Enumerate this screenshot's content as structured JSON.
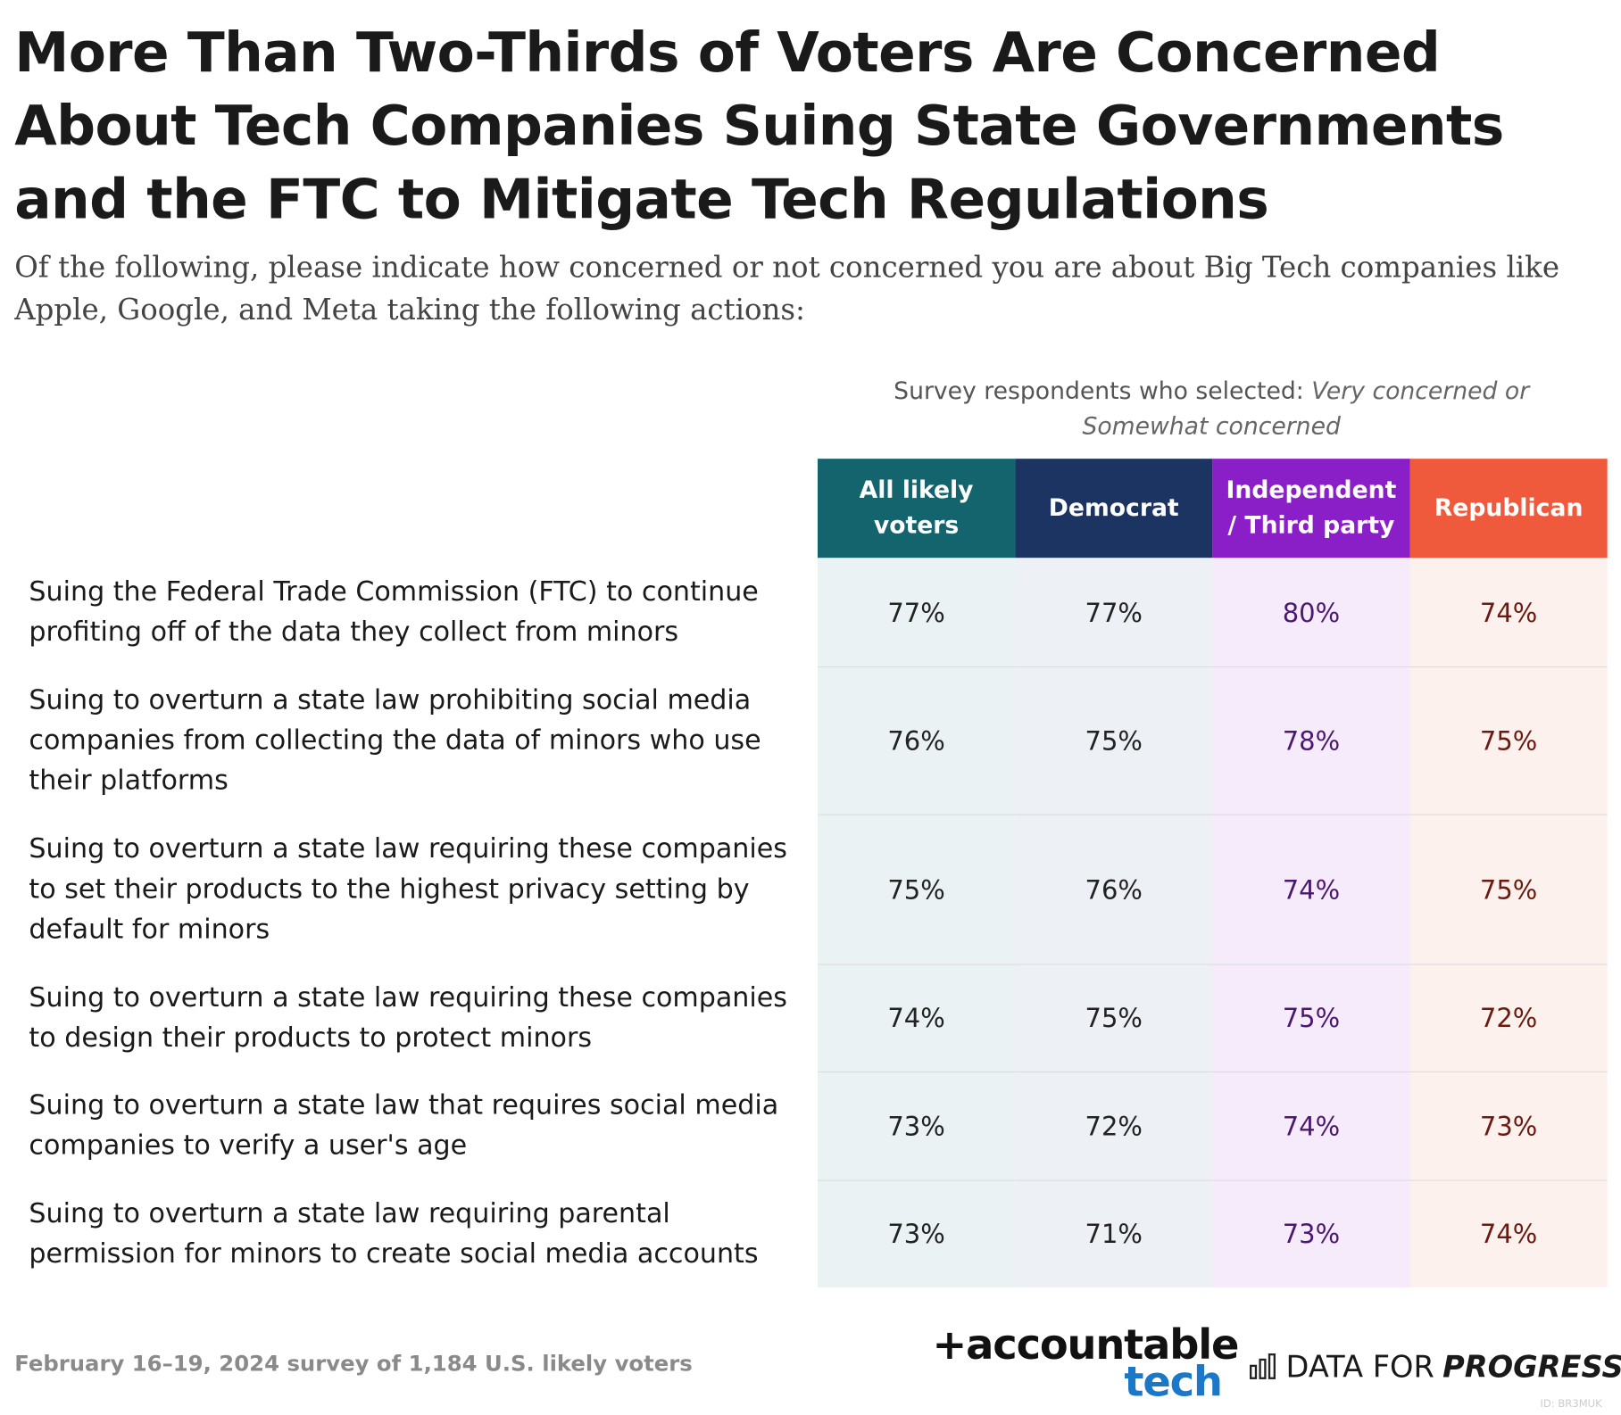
{
  "header": {
    "title": "More Than Two-Thirds of Voters Are Concerned About Tech Companies Suing State Governments and the FTC to Mitigate Tech Regulations",
    "subtitle": "Of the following, please indicate how concerned or not concerned you are about Big Tech companies like Apple, Google, and Meta taking the following actions:"
  },
  "table": {
    "note_prefix": "Survey respondents who selected:",
    "note_italic": "Very concerned or Somewhat concerned",
    "columns": [
      "All likely voters",
      "Democrat",
      "Independent / Third party",
      "Republican"
    ],
    "rows": [
      {
        "label": "Suing the Federal Trade Commission (FTC) to continue profiting off of the data they collect from minors",
        "values": [
          "77%",
          "77%",
          "80%",
          "74%"
        ]
      },
      {
        "label": "Suing to overturn a state law prohibiting social media companies from collecting the data of minors who use their platforms",
        "values": [
          "76%",
          "75%",
          "78%",
          "75%"
        ]
      },
      {
        "label": "Suing to overturn a state law requiring these companies to set their products to the highest privacy setting by default for minors",
        "values": [
          "75%",
          "76%",
          "74%",
          "75%"
        ]
      },
      {
        "label": "Suing to overturn a state law requiring these companies to design their products to protect minors",
        "values": [
          "74%",
          "75%",
          "75%",
          "72%"
        ]
      },
      {
        "label": "Suing to overturn a state law that requires social media companies to verify a user's age",
        "values": [
          "73%",
          "72%",
          "74%",
          "73%"
        ]
      },
      {
        "label": "Suing to overturn a state law requiring parental permission for minors to create social media accounts",
        "values": [
          "73%",
          "71%",
          "73%",
          "74%"
        ]
      }
    ]
  },
  "footer": {
    "source": "February 16–19, 2024 survey of 1,184 U.S. likely voters",
    "logo_a1": "+accountable",
    "logo_a2": "tech",
    "logo_d1": "DATA FOR",
    "logo_d2": "PROGRESS",
    "id": "ID: BR3MUK"
  }
}
